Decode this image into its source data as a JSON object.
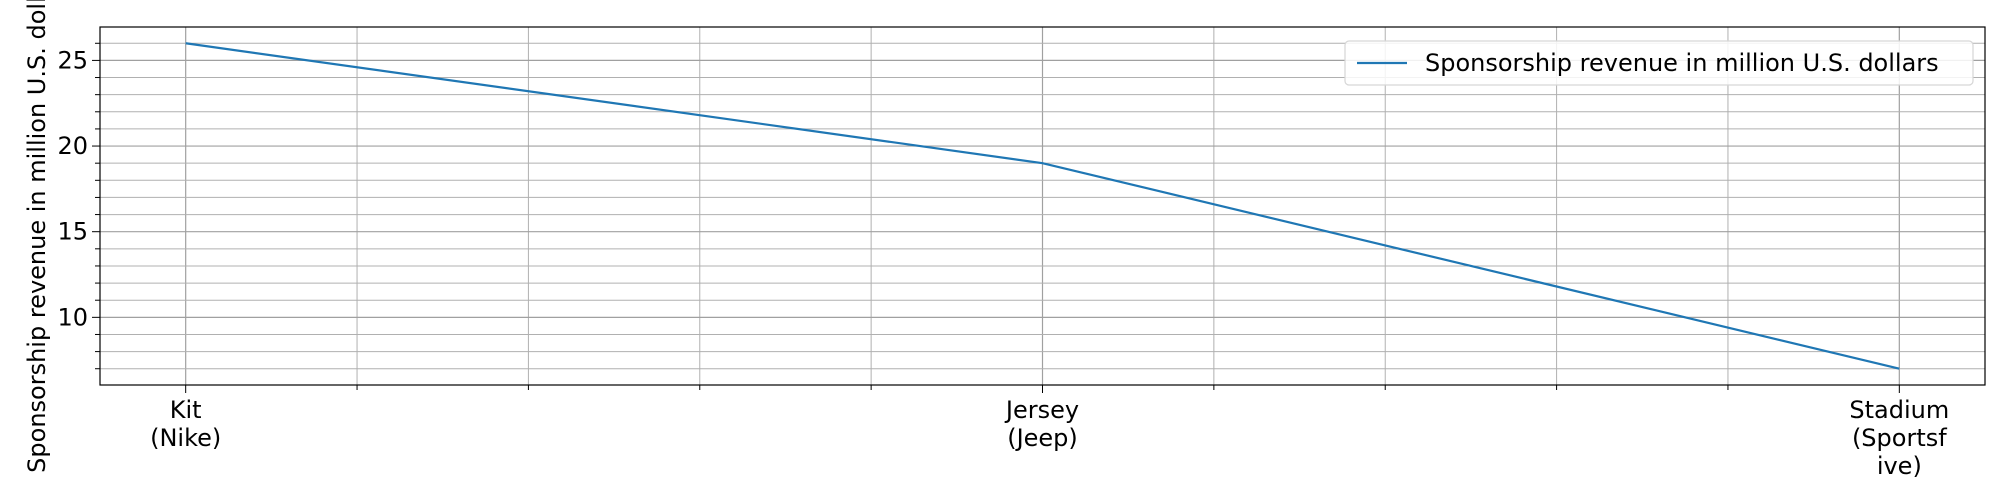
{
  "chart_data": {
    "type": "line",
    "categories": [
      "Kit\n(Nike)",
      "Jersey\n(Jeep)",
      "Stadium\n(Sportsf\nive)"
    ],
    "series": [
      {
        "name": "Sponsorship revenue in million U.S. dollars",
        "values": [
          26,
          19,
          7
        ],
        "color": "#1f77b4"
      }
    ],
    "title": "",
    "xlabel": "",
    "ylabel": "Sponsorship revenue in million U.S. dollars",
    "ylim": [
      6.05,
      26.95
    ],
    "yticks": [
      10,
      15,
      20,
      25
    ],
    "yminor_step": 1,
    "x_minor_ticks_per_interval": 5,
    "grid": true,
    "legend_position": "top-right"
  }
}
